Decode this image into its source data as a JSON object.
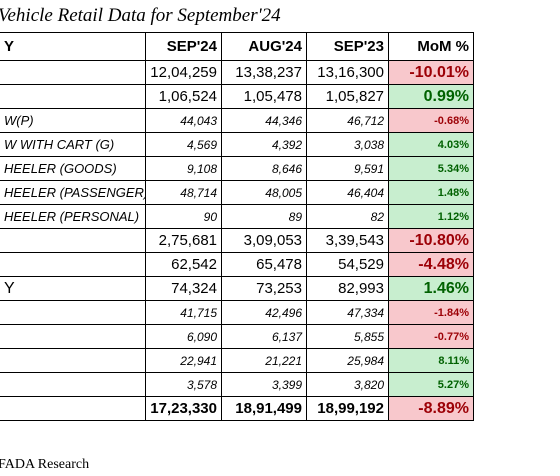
{
  "title": "Vehicle Retail Data for September'24",
  "footer": "FADA Research",
  "colors": {
    "negative_fill": "#f8c8cc",
    "negative_text": "#9c0006",
    "positive_fill": "#c8eecf",
    "positive_text": "#006100"
  },
  "header": {
    "category": "Y",
    "c1": "SEP'24",
    "c2": "AUG'24",
    "c3": "SEP'23",
    "c4": "MoM %"
  },
  "rows": [
    {
      "cat": "",
      "v1": "12,04,259",
      "v2": "13,38,237",
      "v3": "13,16,300",
      "mom": "-10.01%"
    },
    {
      "cat": "",
      "v1": "1,06,524",
      "v2": "1,05,478",
      "v3": "1,05,827",
      "mom": "0.99%"
    },
    {
      "cat": "W(P)",
      "v1": "44,043",
      "v2": "44,346",
      "v3": "46,712",
      "mom": "-0.68%"
    },
    {
      "cat": "W WITH CART (G)",
      "v1": "4,569",
      "v2": "4,392",
      "v3": "3,038",
      "mom": "4.03%"
    },
    {
      "cat": "HEELER (GOODS)",
      "v1": "9,108",
      "v2": "8,646",
      "v3": "9,591",
      "mom": "5.34%"
    },
    {
      "cat": "HEELER (PASSENGER)",
      "v1": "48,714",
      "v2": "48,005",
      "v3": "46,404",
      "mom": "1.48%"
    },
    {
      "cat": "HEELER (PERSONAL)",
      "v1": "90",
      "v2": "89",
      "v3": "82",
      "mom": "1.12%"
    },
    {
      "cat": "",
      "v1": "2,75,681",
      "v2": "3,09,053",
      "v3": "3,39,543",
      "mom": "-10.80%"
    },
    {
      "cat": "",
      "v1": "62,542",
      "v2": "65,478",
      "v3": "54,529",
      "mom": "-4.48%"
    },
    {
      "cat": "Y",
      "v1": "74,324",
      "v2": "73,253",
      "v3": "82,993",
      "mom": "1.46%"
    },
    {
      "cat": "",
      "v1": "41,715",
      "v2": "42,496",
      "v3": "47,334",
      "mom": "-1.84%"
    },
    {
      "cat": "",
      "v1": "6,090",
      "v2": "6,137",
      "v3": "5,855",
      "mom": "-0.77%"
    },
    {
      "cat": "",
      "v1": "22,941",
      "v2": "21,221",
      "v3": "25,984",
      "mom": "8.11%"
    },
    {
      "cat": "",
      "v1": "3,578",
      "v2": "3,399",
      "v3": "3,820",
      "mom": "5.27%"
    },
    {
      "cat": "",
      "v1": "17,23,330",
      "v2": "18,91,499",
      "v3": "18,99,192",
      "mom": "-8.89%"
    }
  ]
}
